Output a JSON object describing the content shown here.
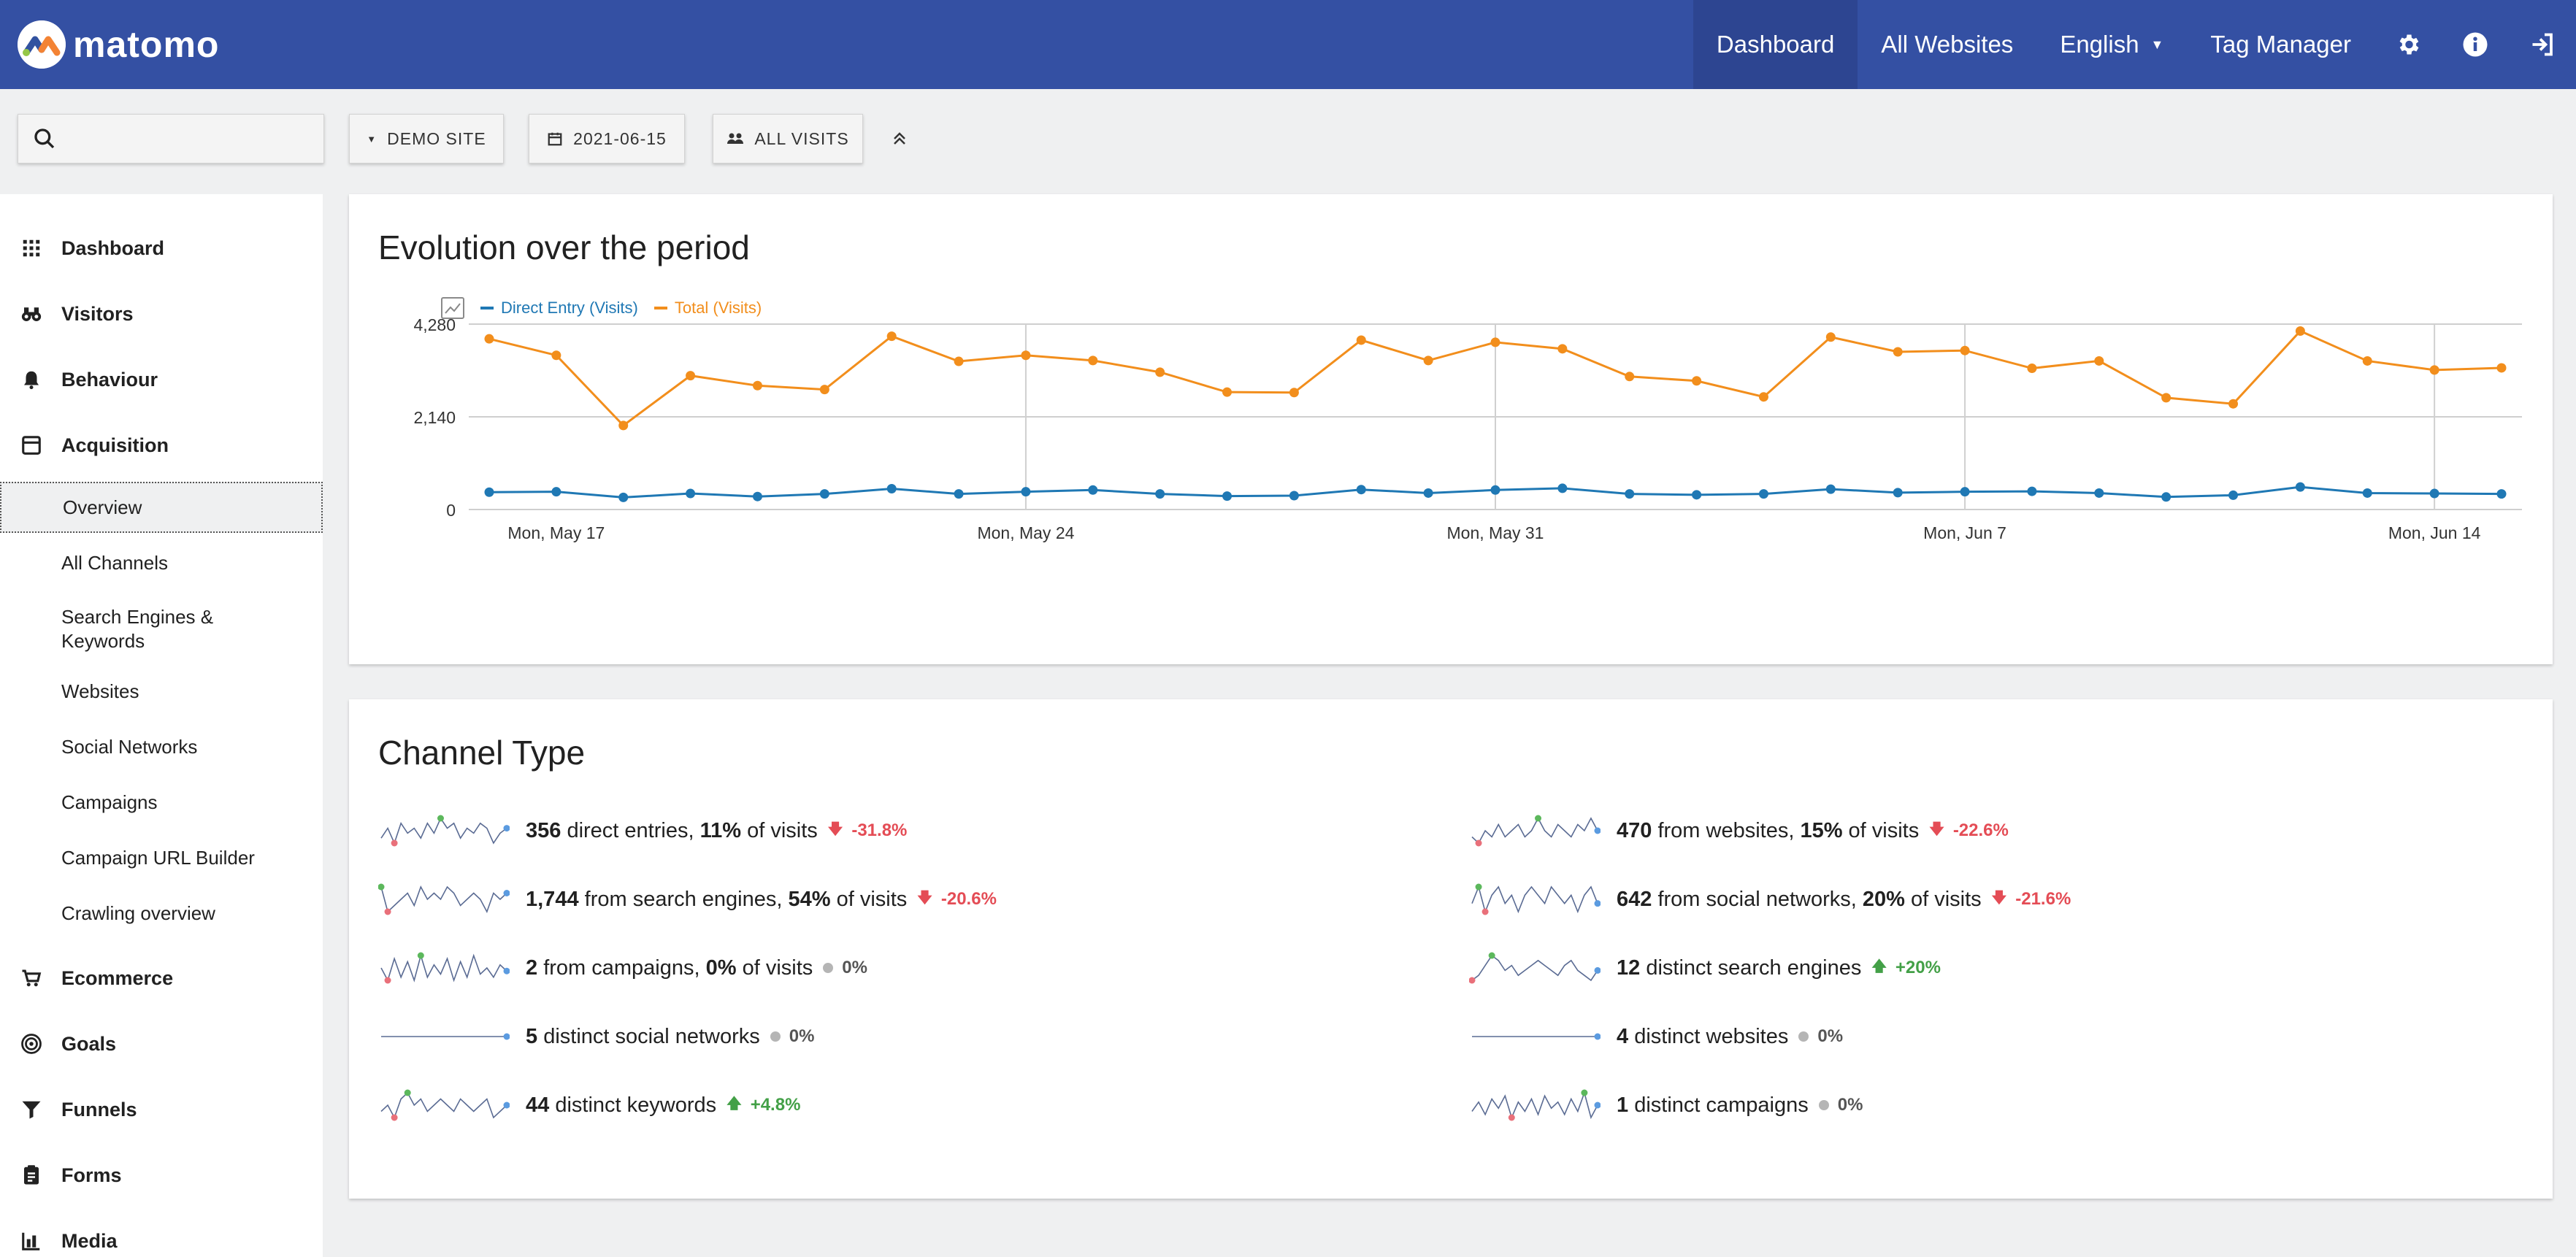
{
  "header": {
    "logo_text": "matomo",
    "nav": {
      "dashboard": "Dashboard",
      "all_websites": "All Websites",
      "language": "English",
      "tag_manager": "Tag Manager"
    },
    "icons": [
      "gear-icon",
      "info-icon",
      "sign-in-icon"
    ],
    "color": "#3450a3"
  },
  "toolbar": {
    "search_placeholder": "",
    "site": "DEMO SITE",
    "date": "2021-06-15",
    "segment": "ALL VISITS"
  },
  "sidebar": {
    "categories": {
      "dashboard": "Dashboard",
      "visitors": "Visitors",
      "behaviour": "Behaviour",
      "acquisition": "Acquisition",
      "ecommerce": "Ecommerce",
      "goals": "Goals",
      "funnels": "Funnels",
      "forms": "Forms",
      "media": "Media"
    },
    "acquisition_items": [
      "Overview",
      "All Channels",
      "Search Engines & Keywords",
      "Websites",
      "Social Networks",
      "Campaigns",
      "Campaign URL Builder",
      "Crawling overview"
    ]
  },
  "evolution": {
    "title": "Evolution over the period",
    "legend": [
      "Direct Entry (Visits)",
      "Total (Visits)"
    ]
  },
  "chart_data": {
    "type": "line",
    "x": [
      "2021-05-16",
      "2021-05-17",
      "2021-05-18",
      "2021-05-19",
      "2021-05-20",
      "2021-05-21",
      "2021-05-22",
      "2021-05-23",
      "2021-05-24",
      "2021-05-25",
      "2021-05-26",
      "2021-05-27",
      "2021-05-28",
      "2021-05-29",
      "2021-05-30",
      "2021-05-31",
      "2021-06-01",
      "2021-06-02",
      "2021-06-03",
      "2021-06-04",
      "2021-06-05",
      "2021-06-06",
      "2021-06-07",
      "2021-06-08",
      "2021-06-09",
      "2021-06-10",
      "2021-06-11",
      "2021-06-12",
      "2021-06-13",
      "2021-06-14",
      "2021-06-15"
    ],
    "x_tick_labels": [
      "Mon, May 17",
      "Mon, May 24",
      "Mon, May 31",
      "Mon, Jun 7",
      "Mon, Jun 14"
    ],
    "series": [
      {
        "name": "Direct Entry (Visits)",
        "color": "#1f78b4",
        "values": [
          400,
          410,
          280,
          370,
          300,
          360,
          480,
          360,
          410,
          450,
          360,
          310,
          320,
          460,
          380,
          450,
          490,
          360,
          340,
          360,
          470,
          390,
          410,
          420,
          380,
          290,
          330,
          520,
          380,
          370,
          360
        ]
      },
      {
        "name": "Total (Visits)",
        "color": "#f28e1c",
        "values": [
          3940,
          3560,
          1940,
          3090,
          2860,
          2770,
          4000,
          3420,
          3560,
          3440,
          3170,
          2710,
          2700,
          3910,
          3440,
          3860,
          3710,
          3070,
          2970,
          2600,
          3980,
          3640,
          3670,
          3260,
          3430,
          2580,
          2440,
          4120,
          3430,
          3220,
          3270
        ]
      }
    ],
    "y_ticks": [
      0,
      2140,
      4280
    ],
    "y_tick_labels": [
      "0",
      "2,140",
      "4,280"
    ],
    "ylim": [
      0,
      4280
    ],
    "grid": true,
    "legend": "top-left"
  },
  "channel_type": {
    "title": "Channel Type",
    "left": [
      {
        "value": "356",
        "text": " direct entries, ",
        "pct": "11%",
        "suffix": " of visits",
        "delta": "-31.8%",
        "trend": "neg"
      },
      {
        "value": "1,744",
        "text": " from search engines, ",
        "pct": "54%",
        "suffix": " of visits",
        "delta": "-20.6%",
        "trend": "neg"
      },
      {
        "value": "2",
        "text": " from campaigns, ",
        "pct": "0%",
        "suffix": " of visits",
        "delta": "0%",
        "trend": "zero"
      },
      {
        "value": "5",
        "text": " distinct social networks",
        "pct": "",
        "suffix": "",
        "delta": "0%",
        "trend": "zero"
      },
      {
        "value": "44",
        "text": " distinct keywords",
        "pct": "",
        "suffix": "",
        "delta": "+4.8%",
        "trend": "pos"
      }
    ],
    "right": [
      {
        "value": "470",
        "text": " from websites, ",
        "pct": "15%",
        "suffix": " of visits",
        "delta": "-22.6%",
        "trend": "neg"
      },
      {
        "value": "642",
        "text": " from social networks, ",
        "pct": "20%",
        "suffix": " of visits",
        "delta": "-21.6%",
        "trend": "neg"
      },
      {
        "value": "12",
        "text": " distinct search engines",
        "pct": "",
        "suffix": "",
        "delta": "+20%",
        "trend": "pos"
      },
      {
        "value": "4",
        "text": " distinct websites",
        "pct": "",
        "suffix": "",
        "delta": "0%",
        "trend": "zero"
      },
      {
        "value": "1",
        "text": " distinct campaigns",
        "pct": "",
        "suffix": "",
        "delta": "0%",
        "trend": "zero"
      }
    ]
  }
}
